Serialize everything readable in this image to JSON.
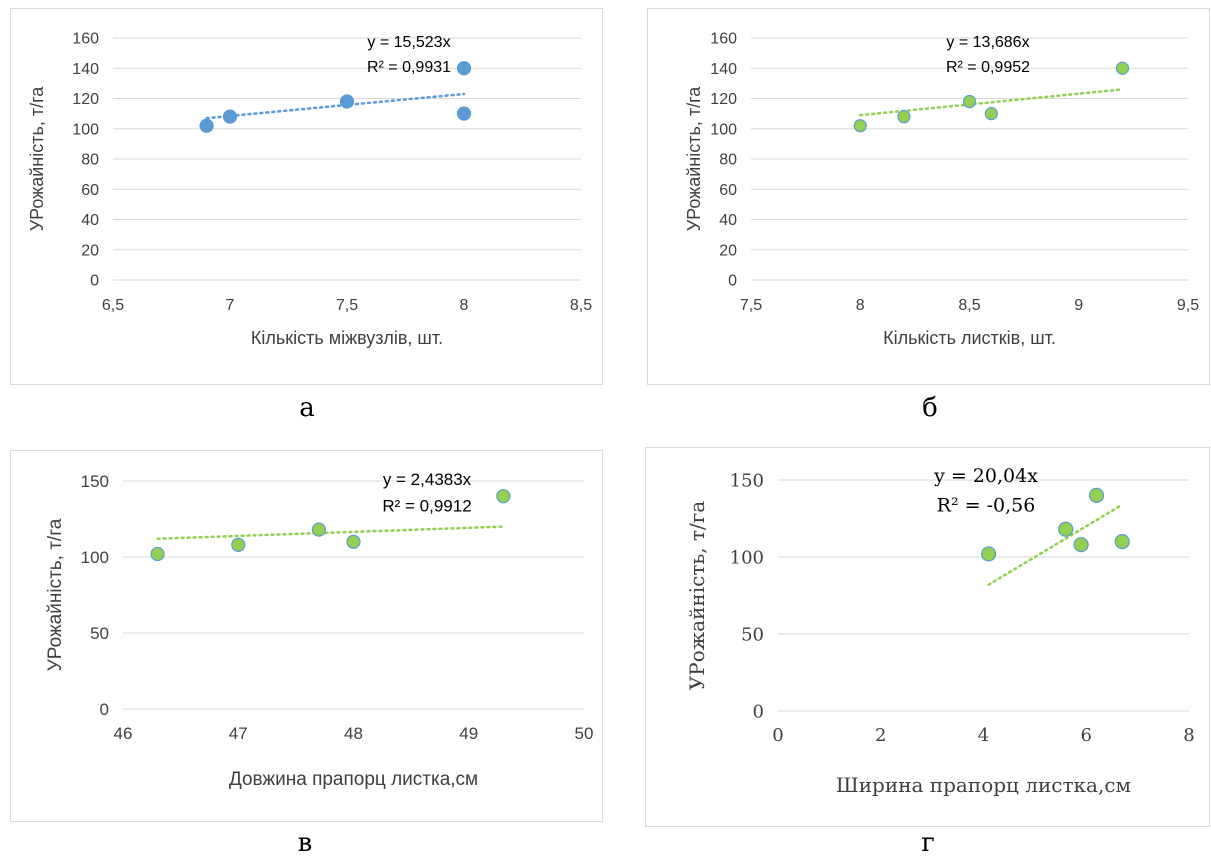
{
  "chart_data": [
    {
      "type": "scatter",
      "panel_label": "а",
      "xlabel": "Кількість міжвузлів, шт.",
      "ylabel": "УРожайність, т/га",
      "xlim": [
        6.5,
        8.5
      ],
      "ylim": [
        0,
        160
      ],
      "x_ticks": [
        "6,5",
        "7",
        "7,5",
        "8",
        "8,5"
      ],
      "y_ticks": [
        "0",
        "20",
        "40",
        "60",
        "80",
        "100",
        "120",
        "140",
        "160"
      ],
      "x_tick_values": [
        6.5,
        7,
        7.5,
        8,
        8.5
      ],
      "y_tick_values": [
        0,
        20,
        40,
        60,
        80,
        100,
        120,
        140,
        160
      ],
      "points": [
        [
          6.9,
          102
        ],
        [
          7.0,
          108
        ],
        [
          7.5,
          118
        ],
        [
          8.0,
          140
        ],
        [
          8.0,
          110
        ]
      ],
      "trendline": {
        "x": [
          6.9,
          8.0
        ],
        "y": [
          107,
          123
        ]
      },
      "equation": "y = 15,523x",
      "r2": "R² = 0,9931",
      "marker_color": "#5b9bd5",
      "trend_color": "#5b9bd5",
      "grid": true
    },
    {
      "type": "scatter",
      "panel_label": "б",
      "xlabel": "Кількість листків, шт.",
      "ylabel": "УРожайність, т/га",
      "xlim": [
        7.5,
        9.5
      ],
      "ylim": [
        0,
        160
      ],
      "x_ticks": [
        "7,5",
        "8",
        "8,5",
        "9",
        "9,5"
      ],
      "y_ticks": [
        "0",
        "20",
        "40",
        "60",
        "80",
        "100",
        "120",
        "140",
        "160"
      ],
      "x_tick_values": [
        7.5,
        8,
        8.5,
        9,
        9.5
      ],
      "y_tick_values": [
        0,
        20,
        40,
        60,
        80,
        100,
        120,
        140,
        160
      ],
      "points": [
        [
          8.0,
          102
        ],
        [
          8.2,
          108
        ],
        [
          8.5,
          118
        ],
        [
          8.6,
          110
        ],
        [
          9.2,
          140
        ]
      ],
      "trendline": {
        "x": [
          8.0,
          9.2
        ],
        "y": [
          109,
          126
        ]
      },
      "equation": "y = 13,686x",
      "r2": "R² = 0,9952",
      "marker_color": "#92d050",
      "trend_color": "#92d050",
      "grid": true
    },
    {
      "type": "scatter",
      "panel_label": "в",
      "xlabel": "Довжина прапорц листка,см",
      "ylabel": "УРожайність, т/га",
      "xlim": [
        46,
        50
      ],
      "ylim": [
        0,
        150
      ],
      "x_ticks": [
        "46",
        "47",
        "48",
        "49",
        "50"
      ],
      "y_ticks": [
        "0",
        "50",
        "100",
        "150"
      ],
      "x_tick_values": [
        46,
        47,
        48,
        49,
        50
      ],
      "y_tick_values": [
        0,
        50,
        100,
        150
      ],
      "points": [
        [
          46.3,
          102
        ],
        [
          47.0,
          108
        ],
        [
          47.7,
          118
        ],
        [
          48.0,
          110
        ],
        [
          49.3,
          140
        ]
      ],
      "trendline": {
        "x": [
          46.3,
          49.3
        ],
        "y": [
          112,
          120
        ]
      },
      "equation": "y = 2,4383x",
      "r2": "R² = 0,9912",
      "marker_color": "#92d050",
      "trend_color": "#92d050",
      "grid": true
    },
    {
      "type": "scatter",
      "panel_label": "г",
      "xlabel": "Ширина прапорц листка,см",
      "ylabel": "УРожайність, т/га",
      "xlim": [
        0,
        8
      ],
      "ylim": [
        0,
        150
      ],
      "x_ticks": [
        "0",
        "2",
        "4",
        "6",
        "8"
      ],
      "y_ticks": [
        "0",
        "50",
        "100",
        "150"
      ],
      "x_tick_values": [
        0,
        2,
        4,
        6,
        8
      ],
      "y_tick_values": [
        0,
        50,
        100,
        150
      ],
      "points": [
        [
          4.1,
          102
        ],
        [
          5.6,
          118
        ],
        [
          5.9,
          108
        ],
        [
          6.2,
          140
        ],
        [
          6.7,
          110
        ]
      ],
      "trendline": {
        "x": [
          4.1,
          6.7
        ],
        "y": [
          82,
          134
        ]
      },
      "equation": "y = 20,04x",
      "r2": "R² = -0,56",
      "marker_color": "#92d050",
      "trend_color": "#92d050",
      "grid": true
    }
  ]
}
